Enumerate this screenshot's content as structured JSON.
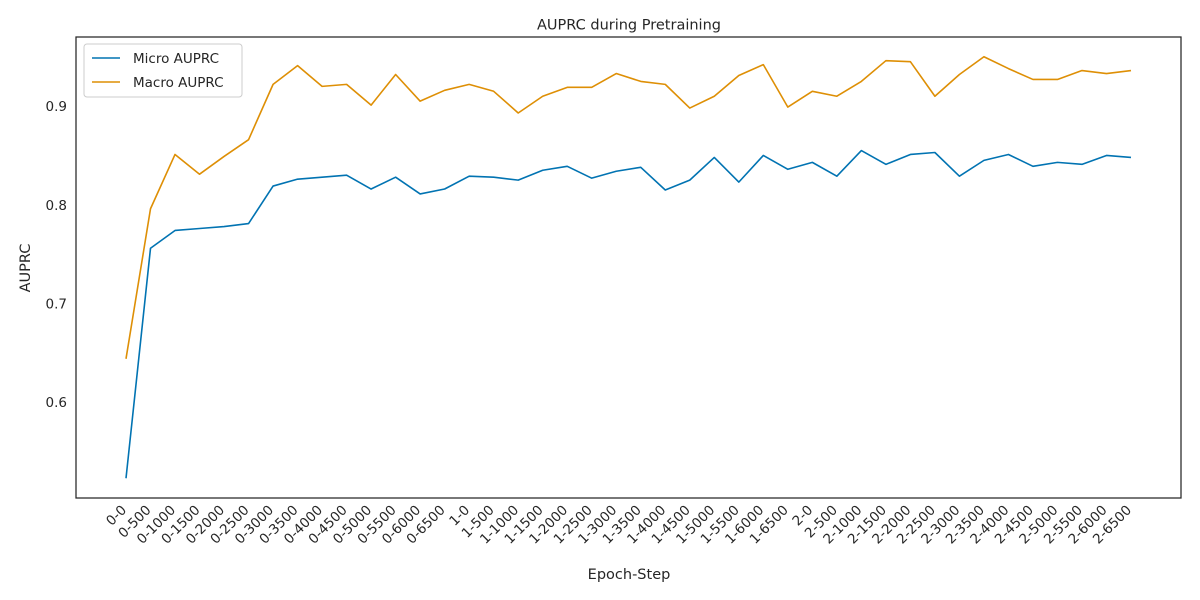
{
  "chart_data": {
    "type": "line",
    "title": "AUPRC during Pretraining",
    "xlabel": "Epoch-Step",
    "ylabel": "AUPRC",
    "ylim": [
      0.503,
      0.97
    ],
    "yticks": [
      0.6,
      0.7,
      0.8,
      0.9
    ],
    "ytick_labels": [
      "0.6",
      "0.7",
      "0.8",
      "0.9"
    ],
    "grid": false,
    "legend_position": "top-left",
    "categories": [
      "0-0",
      "0-500",
      "0-1000",
      "0-1500",
      "0-2000",
      "0-2500",
      "0-3000",
      "0-3500",
      "0-4000",
      "0-4500",
      "0-5000",
      "0-5500",
      "0-6000",
      "0-6500",
      "1-0",
      "1-500",
      "1-1000",
      "1-1500",
      "1-2000",
      "1-2500",
      "1-3000",
      "1-3500",
      "1-4000",
      "1-4500",
      "1-5000",
      "1-5500",
      "1-6000",
      "1-6500",
      "2-0",
      "2-500",
      "2-1000",
      "2-1500",
      "2-2000",
      "2-2500",
      "2-3000",
      "2-3500",
      "2-4000",
      "2-4500",
      "2-5000",
      "2-5500",
      "2-6000",
      "2-6500"
    ],
    "series": [
      {
        "name": "Micro AUPRC",
        "color": "#0173b2",
        "values": [
          0.523,
          0.756,
          0.774,
          0.776,
          0.778,
          0.781,
          0.819,
          0.826,
          0.828,
          0.83,
          0.816,
          0.828,
          0.811,
          0.816,
          0.829,
          0.828,
          0.825,
          0.835,
          0.839,
          0.827,
          0.834,
          0.838,
          0.815,
          0.825,
          0.848,
          0.823,
          0.85,
          0.836,
          0.843,
          0.829,
          0.855,
          0.841,
          0.851,
          0.853,
          0.829,
          0.845,
          0.851,
          0.839,
          0.843,
          0.841,
          0.85,
          0.848
        ]
      },
      {
        "name": "Macro AUPRC",
        "color": "#de8f05",
        "values": [
          0.644,
          0.796,
          0.851,
          0.831,
          0.849,
          0.866,
          0.922,
          0.941,
          0.92,
          0.922,
          0.901,
          0.932,
          0.905,
          0.916,
          0.922,
          0.915,
          0.893,
          0.91,
          0.919,
          0.919,
          0.933,
          0.925,
          0.922,
          0.898,
          0.91,
          0.931,
          0.942,
          0.899,
          0.915,
          0.91,
          0.925,
          0.946,
          0.945,
          0.91,
          0.932,
          0.95,
          0.938,
          0.927,
          0.927,
          0.936,
          0.933,
          0.936
        ]
      }
    ]
  }
}
